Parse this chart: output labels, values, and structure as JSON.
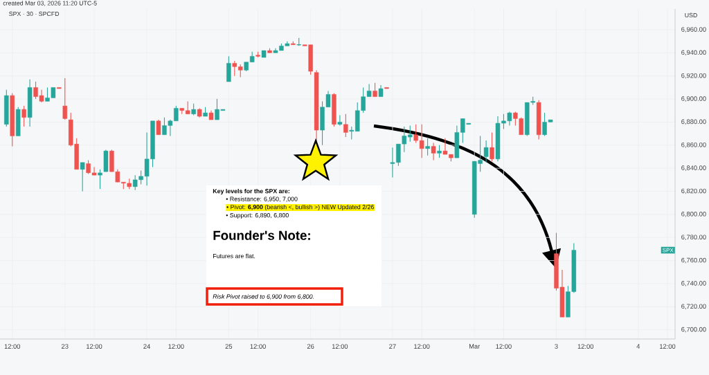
{
  "chart_data": {
    "type": "candlestick",
    "title": "SPX · 30 · SPCFD",
    "ylabel": "USD",
    "annotations": [
      "created Mar 03, 2026 11:20 UTC-5",
      "Key levels for the SPX are:",
      "• Resistance: 6,950, 7,000",
      "• Pivot: **6,900** (bearish <, bullish >) NEW Updated 2/26",
      "• Support: 6,890, 6,800",
      "Founder's Note:",
      "Futures are flat.",
      "Risk Pivot raised to 6,900 from 6,800.",
      {
        "text": "SPX",
        "y": 6769
      }
    ],
    "categories": [
      null,
      "12:00",
      null,
      null,
      null,
      null,
      null,
      null,
      null,
      null,
      "23",
      null,
      null,
      null,
      null,
      "12:00",
      null,
      null,
      null,
      null,
      null,
      null,
      null,
      null,
      "24",
      null,
      null,
      null,
      null,
      "12:00",
      null,
      null,
      null,
      null,
      null,
      null,
      null,
      null,
      "25",
      null,
      null,
      null,
      null,
      "12:00",
      null,
      null,
      null,
      null,
      null,
      null,
      null,
      null,
      "26",
      null,
      null,
      null,
      null,
      "12:00",
      null,
      null,
      null,
      null,
      null,
      null,
      null,
      null,
      "27",
      null,
      null,
      null,
      null,
      "12:00",
      null,
      null,
      null,
      null,
      null,
      null,
      null,
      null,
      "Mar",
      null,
      null,
      null,
      null,
      "12:00",
      null,
      null,
      null,
      null,
      null,
      null,
      null,
      null,
      "3",
      null,
      null,
      null,
      null,
      "12:00",
      null,
      null,
      null,
      null,
      null,
      null,
      null,
      null,
      "4",
      null,
      null,
      null,
      null,
      "12:00"
    ],
    "ylim": [
      6692,
      6978
    ],
    "yticks": [
      {
        "value": 6700,
        "label": "6,700.00"
      },
      {
        "value": 6720,
        "label": "6,720.00"
      },
      {
        "value": 6740,
        "label": "6,740.00"
      },
      {
        "value": 6760,
        "label": "6,760.00"
      },
      {
        "value": 6780,
        "label": "6,780.00"
      },
      {
        "value": 6800,
        "label": "6,800.00"
      },
      {
        "value": 6820,
        "label": "6,820.00"
      },
      {
        "value": 6840,
        "label": "6,840.00"
      },
      {
        "value": 6860,
        "label": "6,860.00"
      },
      {
        "value": 6880,
        "label": "6,880.00"
      },
      {
        "value": 6900,
        "label": "6,900.00"
      },
      {
        "value": 6920,
        "label": "6,920.00"
      },
      {
        "value": 6940,
        "label": "6,940.00"
      },
      {
        "value": 6960,
        "label": "6,960.00"
      }
    ],
    "grid": true,
    "ohlc": [
      [
        6878,
        6908,
        6876,
        6903
      ],
      [
        6903,
        6905,
        6859,
        6868
      ],
      [
        6868,
        6893,
        6868,
        6891
      ],
      [
        6891,
        6894,
        6876,
        6884
      ],
      [
        6884,
        6917,
        6876,
        6910
      ],
      [
        6910,
        6915,
        6900,
        6902
      ],
      [
        6903,
        6908,
        6897,
        6898
      ],
      [
        6898,
        6910,
        6898,
        6901
      ],
      [
        6901,
        6910,
        6901,
        6910
      ],
      [
        6910,
        6910,
        6909,
        6909
      ],
      [
        6894,
        6918,
        6882,
        6883
      ],
      [
        6882,
        6888,
        6859,
        6860
      ],
      [
        6861,
        6866,
        6839,
        6839
      ],
      [
        6839,
        6845,
        6820,
        6845
      ],
      [
        6844,
        6847,
        6835,
        6836
      ],
      [
        6836,
        6841,
        6834,
        6834
      ],
      [
        6834,
        6839,
        6822,
        6836
      ],
      [
        6837,
        6856,
        6837,
        6855
      ],
      [
        6855,
        6856,
        6837,
        6837
      ],
      [
        6837,
        6839,
        6828,
        6828
      ],
      [
        6828,
        6828,
        6822,
        6827
      ],
      [
        6827,
        6831,
        6822,
        6824
      ],
      [
        6824,
        6834,
        6821,
        6830
      ],
      [
        6830,
        6838,
        6826,
        6833
      ],
      [
        6833,
        6871,
        6825,
        6848
      ],
      [
        6848,
        6881,
        6841,
        6881
      ],
      [
        6881,
        6882,
        6869,
        6869
      ],
      [
        6869,
        6884,
        6869,
        6877
      ],
      [
        6877,
        6882,
        6868,
        6881
      ],
      [
        6881,
        6894,
        6881,
        6892
      ],
      [
        6892,
        6892,
        6887,
        6890
      ],
      [
        6890,
        6898,
        6887,
        6887
      ],
      [
        6887,
        6896,
        6886,
        6891
      ],
      [
        6891,
        6892,
        6884,
        6885
      ],
      [
        6885,
        6893,
        6885,
        6888
      ],
      [
        6888,
        6890,
        6882,
        6882
      ],
      [
        6882,
        6900,
        6882,
        6891
      ],
      [
        6890,
        6891,
        6890,
        6891
      ],
      [
        6915,
        6937,
        6915,
        6931
      ],
      [
        6931,
        6933,
        6920,
        6928
      ],
      [
        6928,
        6930,
        6919,
        6925
      ],
      [
        6925,
        6932,
        6924,
        6932
      ],
      [
        6932,
        6941,
        6932,
        6937
      ],
      [
        6938,
        6941,
        6936,
        6937
      ],
      [
        6936,
        6942,
        6936,
        6942
      ],
      [
        6942,
        6944,
        6940,
        6940
      ],
      [
        6940,
        6944,
        6940,
        6942
      ],
      [
        6942,
        6948,
        6942,
        6946
      ],
      [
        6946,
        6950,
        6946,
        6948
      ],
      [
        6948,
        6950,
        6947,
        6947
      ],
      [
        6947,
        6953,
        6946,
        6947
      ],
      [
        6947,
        6947,
        6946,
        6946
      ],
      [
        6947,
        6947,
        6921,
        6924
      ],
      [
        6923,
        6925,
        6863,
        6873
      ],
      [
        6873,
        6898,
        6860,
        6893
      ],
      [
        6893,
        6907,
        6893,
        6904
      ],
      [
        6904,
        6905,
        6876,
        6878
      ],
      [
        6878,
        6886,
        6877,
        6880
      ],
      [
        6878,
        6887,
        6867,
        6871
      ],
      [
        6872,
        6876,
        6865,
        6873
      ],
      [
        6872,
        6897,
        6872,
        6890
      ],
      [
        6890,
        6910,
        6888,
        6902
      ],
      [
        6902,
        6913,
        6902,
        6907
      ],
      [
        6907,
        6914,
        6902,
        6902
      ],
      [
        6902,
        6912,
        6902,
        6909
      ],
      [
        6910,
        6910,
        6909,
        6909
      ],
      [
        6844,
        6858,
        6832,
        6845
      ],
      [
        6845,
        6861,
        6842,
        6861
      ],
      [
        6861,
        6876,
        6854,
        6868
      ],
      [
        6867,
        6877,
        6863,
        6869
      ],
      [
        6869,
        6878,
        6862,
        6864
      ],
      [
        6864,
        6878,
        6849,
        6857
      ],
      [
        6857,
        6866,
        6851,
        6859
      ],
      [
        6859,
        6862,
        6847,
        6853
      ],
      [
        6853,
        6860,
        6849,
        6855
      ],
      [
        6855,
        6866,
        6852,
        6852
      ],
      [
        6852,
        6852,
        6846,
        6849
      ],
      [
        6849,
        6877,
        6849,
        6871
      ],
      [
        6871,
        6883,
        6862,
        6883
      ],
      [
        6878,
        6879,
        6878,
        6879
      ],
      [
        6800,
        6846,
        6797,
        6846
      ],
      [
        6844,
        6868,
        6837,
        6847
      ],
      [
        6850,
        6864,
        6845,
        6858
      ],
      [
        6858,
        6871,
        6846,
        6848
      ],
      [
        6848,
        6885,
        6846,
        6879
      ],
      [
        6879,
        6887,
        6874,
        6881
      ],
      [
        6881,
        6889,
        6877,
        6888
      ],
      [
        6888,
        6889,
        6877,
        6883
      ],
      [
        6883,
        6884,
        6869,
        6869
      ],
      [
        6869,
        6897,
        6868,
        6897
      ],
      [
        6897,
        6902,
        6895,
        6898
      ],
      [
        6897,
        6899,
        6865,
        6869
      ],
      [
        6869,
        6888,
        6868,
        6880
      ],
      [
        6880,
        6882,
        6880,
        6882
      ],
      [
        6766,
        6784,
        6734,
        6736
      ],
      [
        6737,
        6752,
        6711,
        6711
      ],
      [
        6711,
        6738,
        6711,
        6733
      ],
      [
        6733,
        6775,
        6732,
        6769
      ],
      null,
      null,
      null,
      null,
      null,
      null,
      null,
      null,
      null,
      null,
      null,
      null,
      null,
      null,
      null,
      null
    ],
    "colors": [
      "#26a69a",
      "#ef5350",
      "#26a69a",
      "#ef5350",
      "#26a69a",
      "#ef5350",
      "#ef5350",
      "#26a69a",
      "#26a69a",
      "#ef5350",
      "#ef5350",
      "#ef5350",
      "#ef5350",
      "#26a69a",
      "#ef5350",
      "#ef5350",
      "#26a69a",
      "#26a69a",
      "#ef5350",
      "#ef5350",
      "#ef5350",
      "#ef5350",
      "#26a69a",
      "#26a69a",
      "#26a69a",
      "#26a69a",
      "#ef5350",
      "#26a69a",
      "#26a69a",
      "#26a69a",
      "#ef5350",
      "#ef5350",
      "#26a69a",
      "#ef5350",
      "#26a69a",
      "#ef5350",
      "#26a69a",
      "#26a69a",
      "#26a69a",
      "#ef5350",
      "#ef5350",
      "#26a69a",
      "#26a69a",
      "#ef5350",
      "#26a69a",
      "#ef5350",
      "#26a69a",
      "#26a69a",
      "#26a69a",
      "#ef5350",
      "#26a69a",
      "#ef5350",
      "#ef5350",
      "#ef5350",
      "#26a69a",
      "#26a69a",
      "#ef5350",
      "#26a69a",
      "#ef5350",
      "#26a69a",
      "#26a69a",
      "#26a69a",
      "#26a69a",
      "#ef5350",
      "#26a69a",
      "#ef5350",
      "#26a69a",
      "#26a69a",
      "#26a69a",
      "#26a69a",
      "#ef5350",
      "#ef5350",
      "#26a69a",
      "#ef5350",
      "#26a69a",
      "#ef5350",
      "#ef5350",
      "#26a69a",
      "#26a69a",
      "#26a69a",
      "#26a69a",
      "#26a69a",
      "#26a69a",
      "#ef5350",
      "#26a69a",
      "#26a69a",
      "#26a69a",
      "#ef5350",
      "#ef5350",
      "#26a69a",
      "#26a69a",
      "#ef5350",
      "#26a69a",
      "#26a69a",
      "#ef5350",
      "#ef5350",
      "#26a69a",
      "#26a69a",
      null,
      null,
      null,
      null,
      null,
      null,
      null,
      null,
      null,
      null,
      null,
      null,
      null,
      null,
      null,
      null
    ]
  }
}
